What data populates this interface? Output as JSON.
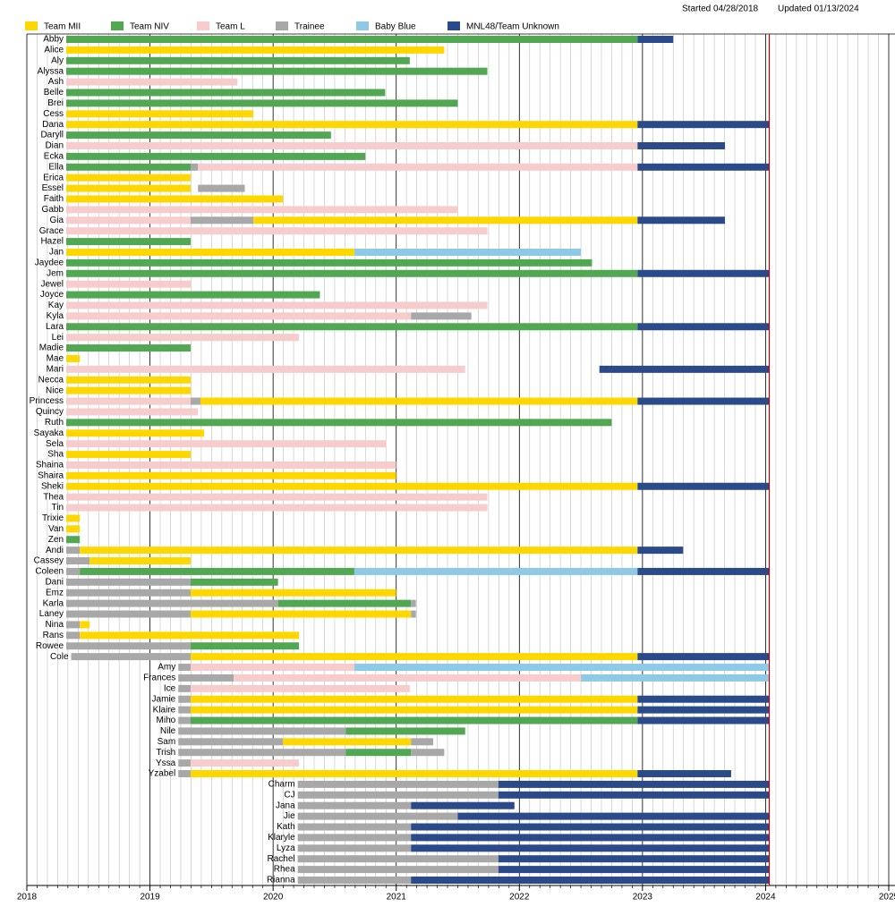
{
  "chart_data": {
    "type": "timeline",
    "started": "Started 04/28/2018",
    "updated": "Updated 01/13/2024",
    "series": [
      {
        "name": "Team MII",
        "color": "#ffd700"
      },
      {
        "name": "Team NIV",
        "color": "#52a852"
      },
      {
        "name": "Team L",
        "color": "#f6cccc"
      },
      {
        "name": "Trainee",
        "color": "#a8a8a8"
      },
      {
        "name": "Baby Blue",
        "color": "#8ecae6"
      },
      {
        "name": "MNL48/Team Unknown",
        "color": "#2a4a8a"
      }
    ],
    "categories": [
      "Abby",
      "Alice",
      "Aly",
      "Alyssa",
      "Ash",
      "Belle",
      "Brei",
      "Cess",
      "Dana",
      "Daryll",
      "Dian",
      "Ecka",
      "Ella",
      "Erica",
      "Essel",
      "Faith",
      "Gabb",
      "Gia",
      "Grace",
      "Hazel",
      "Jan",
      "Jaydee",
      "Jem",
      "Jewel",
      "Joyce",
      "Kay",
      "Kyla",
      "Lara",
      "Lei",
      "Madie",
      "Mae",
      "Mari",
      "Necca",
      "Nice",
      "Princess",
      "Quincy",
      "Ruth",
      "Sayaka",
      "Sela",
      "Sha",
      "Shaina",
      "Shaira",
      "Sheki",
      "Thea",
      "Tin",
      "Trixie",
      "Van",
      "Zen",
      "Andi",
      "Cassey",
      "Coleen",
      "Dani",
      "Emz",
      "Karla",
      "Laney",
      "Nina",
      "Rans",
      "Rowee",
      "Cole",
      "Amy",
      "Frances",
      "Ice",
      "Jamie",
      "Klaire",
      "Miho",
      "Nile",
      "Sam",
      "Trish",
      "Yssa",
      "Yzabel",
      "Charm",
      "CJ",
      "Jana",
      "Jie",
      "Kath",
      "Klaryle",
      "Lyza",
      "Rachel",
      "Rhea",
      "Rianna"
    ],
    "segments": [
      [
        [
          2018.32,
          2022.96,
          1
        ],
        [
          2022.96,
          2023.25,
          5
        ]
      ],
      [
        [
          2018.32,
          2021.39,
          0
        ]
      ],
      [
        [
          2018.32,
          2021.11,
          1
        ]
      ],
      [
        [
          2018.32,
          2021.74,
          1
        ]
      ],
      [
        [
          2018.32,
          2019.71,
          2
        ]
      ],
      [
        [
          2018.32,
          2020.91,
          1
        ]
      ],
      [
        [
          2018.32,
          2021.5,
          1
        ]
      ],
      [
        [
          2018.32,
          2019.84,
          0
        ]
      ],
      [
        [
          2018.32,
          2022.96,
          0
        ],
        [
          2022.96,
          2024.03,
          5
        ]
      ],
      [
        [
          2018.32,
          2020.47,
          1
        ]
      ],
      [
        [
          2018.32,
          2022.96,
          2
        ],
        [
          2022.96,
          2023.67,
          5
        ]
      ],
      [
        [
          2018.32,
          2020.75,
          1
        ]
      ],
      [
        [
          2018.32,
          2019.33,
          1
        ],
        [
          2019.33,
          2019.39,
          3
        ],
        [
          2019.39,
          2022.96,
          2
        ],
        [
          2022.96,
          2024.03,
          5
        ]
      ],
      [
        [
          2018.32,
          2019.33,
          0
        ]
      ],
      [
        [
          2018.32,
          2019.33,
          0
        ],
        [
          2019.39,
          2019.77,
          3
        ]
      ],
      [
        [
          2018.32,
          2020.08,
          0
        ]
      ],
      [
        [
          2018.32,
          2021.5,
          2
        ]
      ],
      [
        [
          2018.32,
          2019.33,
          2
        ],
        [
          2019.33,
          2019.84,
          3
        ],
        [
          2019.84,
          2022.96,
          0
        ],
        [
          2022.96,
          2023.67,
          5
        ]
      ],
      [
        [
          2018.32,
          2021.74,
          2
        ]
      ],
      [
        [
          2018.32,
          2019.33,
          1
        ]
      ],
      [
        [
          2018.32,
          2020.66,
          0
        ],
        [
          2020.66,
          2022.5,
          4
        ]
      ],
      [
        [
          2018.32,
          2022.59,
          1
        ]
      ],
      [
        [
          2018.32,
          2022.96,
          1
        ],
        [
          2022.96,
          2024.03,
          5
        ]
      ],
      [
        [
          2018.32,
          2019.33,
          2
        ]
      ],
      [
        [
          2018.32,
          2020.38,
          1
        ]
      ],
      [
        [
          2018.32,
          2021.74,
          2
        ]
      ],
      [
        [
          2018.32,
          2021.12,
          2
        ],
        [
          2021.12,
          2021.61,
          3
        ]
      ],
      [
        [
          2018.32,
          2022.96,
          1
        ],
        [
          2022.96,
          2024.03,
          5
        ]
      ],
      [
        [
          2018.32,
          2020.21,
          2
        ]
      ],
      [
        [
          2018.32,
          2019.33,
          1
        ]
      ],
      [
        [
          2018.32,
          2018.43,
          0
        ]
      ],
      [
        [
          2018.32,
          2021.56,
          2
        ],
        [
          2022.65,
          2024.03,
          5
        ]
      ],
      [
        [
          2018.32,
          2019.33,
          0
        ]
      ],
      [
        [
          2018.32,
          2019.33,
          0
        ]
      ],
      [
        [
          2018.32,
          2019.33,
          2
        ],
        [
          2019.33,
          2019.41,
          3
        ],
        [
          2019.41,
          2022.96,
          0
        ],
        [
          2022.96,
          2024.03,
          5
        ]
      ],
      [
        [
          2018.32,
          2019.39,
          2
        ]
      ],
      [
        [
          2018.32,
          2022.75,
          1
        ]
      ],
      [
        [
          2018.32,
          2019.44,
          0
        ]
      ],
      [
        [
          2018.32,
          2020.92,
          2
        ]
      ],
      [
        [
          2018.32,
          2019.33,
          0
        ]
      ],
      [
        [
          2018.32,
          2021,
          2
        ]
      ],
      [
        [
          2018.32,
          2021,
          0
        ]
      ],
      [
        [
          2018.32,
          2022.96,
          0
        ],
        [
          2022.96,
          2024.03,
          5
        ]
      ],
      [
        [
          2018.32,
          2021.74,
          2
        ]
      ],
      [
        [
          2018.32,
          2021.74,
          2
        ]
      ],
      [
        [
          2018.32,
          2018.43,
          0
        ]
      ],
      [
        [
          2018.32,
          2018.43,
          0
        ]
      ],
      [
        [
          2018.32,
          2018.43,
          1
        ]
      ],
      [
        [
          2018.32,
          2018.43,
          3
        ],
        [
          2018.43,
          2022.96,
          0
        ],
        [
          2022.96,
          2023.33,
          5
        ]
      ],
      [
        [
          2018.32,
          2018.51,
          3
        ],
        [
          2018.51,
          2019.33,
          0
        ]
      ],
      [
        [
          2018.32,
          2018.43,
          3
        ],
        [
          2018.43,
          2020.66,
          1
        ],
        [
          2020.66,
          2022.96,
          4
        ],
        [
          2022.96,
          2024.03,
          5
        ]
      ],
      [
        [
          2018.32,
          2019.33,
          3
        ],
        [
          2019.33,
          2020.04,
          1
        ]
      ],
      [
        [
          2018.32,
          2019.33,
          3
        ],
        [
          2019.33,
          2021,
          0
        ]
      ],
      [
        [
          2018.32,
          2020.04,
          3
        ],
        [
          2020.04,
          2021.12,
          1
        ],
        [
          2021.12,
          2021.16,
          3
        ]
      ],
      [
        [
          2018.32,
          2019.33,
          3
        ],
        [
          2019.33,
          2021.12,
          0
        ],
        [
          2021.12,
          2021.16,
          3
        ]
      ],
      [
        [
          2018.32,
          2018.43,
          3
        ],
        [
          2018.43,
          2018.51,
          0
        ]
      ],
      [
        [
          2018.32,
          2018.43,
          3
        ],
        [
          2018.43,
          2020.21,
          0
        ]
      ],
      [
        [
          2018.32,
          2019.33,
          3
        ],
        [
          2019.33,
          2020.21,
          1
        ]
      ],
      [
        [
          2018.36,
          2019.33,
          3
        ],
        [
          2019.33,
          2022.96,
          0
        ],
        [
          2022.96,
          2024.03,
          5
        ]
      ],
      [
        [
          2019.23,
          2019.33,
          3
        ],
        [
          2019.33,
          2020.66,
          2
        ],
        [
          2020.66,
          2024.03,
          4
        ]
      ],
      [
        [
          2019.23,
          2019.68,
          3
        ],
        [
          2019.68,
          2022.5,
          2
        ],
        [
          2022.5,
          2024.03,
          4
        ]
      ],
      [
        [
          2019.23,
          2019.33,
          3
        ],
        [
          2019.33,
          2021.11,
          2
        ]
      ],
      [
        [
          2019.23,
          2019.33,
          3
        ],
        [
          2019.33,
          2022.96,
          0
        ],
        [
          2022.96,
          2024.03,
          5
        ]
      ],
      [
        [
          2019.23,
          2019.33,
          3
        ],
        [
          2019.33,
          2022.96,
          0
        ],
        [
          2022.96,
          2024.03,
          5
        ]
      ],
      [
        [
          2019.23,
          2019.33,
          3
        ],
        [
          2019.33,
          2022.96,
          1
        ],
        [
          2022.96,
          2024.03,
          5
        ]
      ],
      [
        [
          2019.23,
          2020.59,
          3
        ],
        [
          2020.59,
          2021.56,
          1
        ]
      ],
      [
        [
          2019.23,
          2020.08,
          3
        ],
        [
          2020.08,
          2021.12,
          0
        ],
        [
          2021.12,
          2021.3,
          3
        ]
      ],
      [
        [
          2019.23,
          2020.59,
          3
        ],
        [
          2020.59,
          2021.12,
          1
        ],
        [
          2021.12,
          2021.39,
          3
        ]
      ],
      [
        [
          2019.23,
          2019.33,
          3
        ],
        [
          2019.33,
          2020.21,
          2
        ]
      ],
      [
        [
          2019.23,
          2019.33,
          3
        ],
        [
          2019.33,
          2022.96,
          0
        ],
        [
          2022.96,
          2023.72,
          5
        ]
      ],
      [
        [
          2020.2,
          2021.83,
          3
        ],
        [
          2021.83,
          2024.03,
          5
        ]
      ],
      [
        [
          2020.2,
          2021.83,
          3
        ],
        [
          2021.83,
          2024.03,
          5
        ]
      ],
      [
        [
          2020.2,
          2021.12,
          3
        ],
        [
          2021.12,
          2021.96,
          5
        ]
      ],
      [
        [
          2020.2,
          2021.5,
          3
        ],
        [
          2021.5,
          2024.03,
          5
        ]
      ],
      [
        [
          2020.2,
          2021.12,
          3
        ],
        [
          2021.12,
          2024.03,
          5
        ]
      ],
      [
        [
          2020.2,
          2021.12,
          3
        ],
        [
          2021.12,
          2024.03,
          5
        ]
      ],
      [
        [
          2020.2,
          2021.12,
          3
        ],
        [
          2021.12,
          2024.03,
          5
        ]
      ],
      [
        [
          2020.2,
          2021.83,
          3
        ],
        [
          2021.83,
          2024.03,
          5
        ]
      ],
      [
        [
          2020.2,
          2021.83,
          3
        ],
        [
          2021.83,
          2024.03,
          5
        ]
      ],
      [
        [
          2020.2,
          2021.12,
          3
        ],
        [
          2021.12,
          2024.03,
          5
        ]
      ]
    ],
    "xlim": [
      2018,
      2025
    ],
    "xticks": [
      2018,
      2019,
      2020,
      2021,
      2022,
      2023,
      2024,
      2025
    ],
    "minor_per_year": 12,
    "now": 2024.03,
    "now_color": "#cc0000"
  }
}
